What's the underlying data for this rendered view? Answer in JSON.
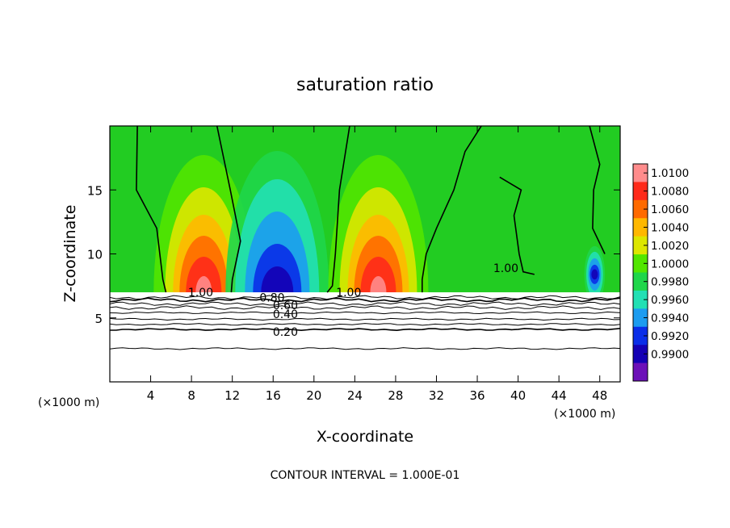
{
  "colors": {
    "background": "#ffffff",
    "frame": "#000000",
    "default_field": "#22cc22"
  },
  "chart_data": {
    "type": "heatmap",
    "title": "saturation ratio",
    "xlabel": "X-coordinate",
    "ylabel": "Z-coordinate",
    "x_unit": "(×1000 m)",
    "y_unit": "(×1000 m)",
    "footer": "CONTOUR INTERVAL = 1.000E-01",
    "xlim": [
      0,
      50
    ],
    "ylim": [
      0,
      20
    ],
    "x_ticks": [
      4,
      8,
      12,
      16,
      20,
      24,
      28,
      32,
      36,
      40,
      44,
      48
    ],
    "y_ticks": [
      5,
      10,
      15
    ],
    "grid": false,
    "colorbar": {
      "position": "right",
      "levels": [
        "1.0100",
        "1.0080",
        "1.0060",
        "1.0040",
        "1.0020",
        "1.0000",
        "0.9980",
        "0.9960",
        "0.9940",
        "0.9920",
        "0.9900"
      ],
      "colors": [
        "#ff8c8c",
        "#ff2a1a",
        "#ff6a00",
        "#ffb800",
        "#dde600",
        "#52e600",
        "#1fd64a",
        "#22e0b4",
        "#1c9cf0",
        "#0a2ee8",
        "#1400b4",
        "#6c10b8"
      ]
    },
    "contour_labels": [
      {
        "text": "1.00",
        "x": 8.9,
        "z": 7.0
      },
      {
        "text": "0.80",
        "x": 15.9,
        "z": 6.6
      },
      {
        "text": "0.60",
        "x": 17.2,
        "z": 6.0
      },
      {
        "text": "0.40",
        "x": 17.2,
        "z": 5.3
      },
      {
        "text": "0.20",
        "x": 17.2,
        "z": 3.9
      },
      {
        "text": "1.00",
        "x": 23.4,
        "z": 7.0
      },
      {
        "text": "1.00",
        "x": 38.8,
        "z": 8.9
      }
    ],
    "horizontal_contours": [
      {
        "level": 0.9,
        "z": 6.6
      },
      {
        "level": 0.8,
        "z": 6.4
      },
      {
        "level": 0.7,
        "z": 6.1
      },
      {
        "level": 0.6,
        "z": 5.8
      },
      {
        "level": 0.5,
        "z": 5.4
      },
      {
        "level": 0.4,
        "z": 4.9
      },
      {
        "level": 0.3,
        "z": 4.5
      },
      {
        "level": 0.2,
        "z": 4.1
      },
      {
        "level": 0.1,
        "z": 2.6
      }
    ],
    "field_anomalies": [
      {
        "kind": "supersaturated",
        "x": 9.2,
        "z": 7.0,
        "peak": 1.01
      },
      {
        "kind": "subsaturated",
        "x": 16.4,
        "z": 7.0,
        "peak": 0.992
      },
      {
        "kind": "supersaturated",
        "x": 26.3,
        "z": 7.0,
        "peak": 1.01
      },
      {
        "kind": "subsaturated",
        "x": 47.5,
        "z": 8.4,
        "peak": 0.992
      }
    ],
    "cloud_base_z": 7.0
  }
}
